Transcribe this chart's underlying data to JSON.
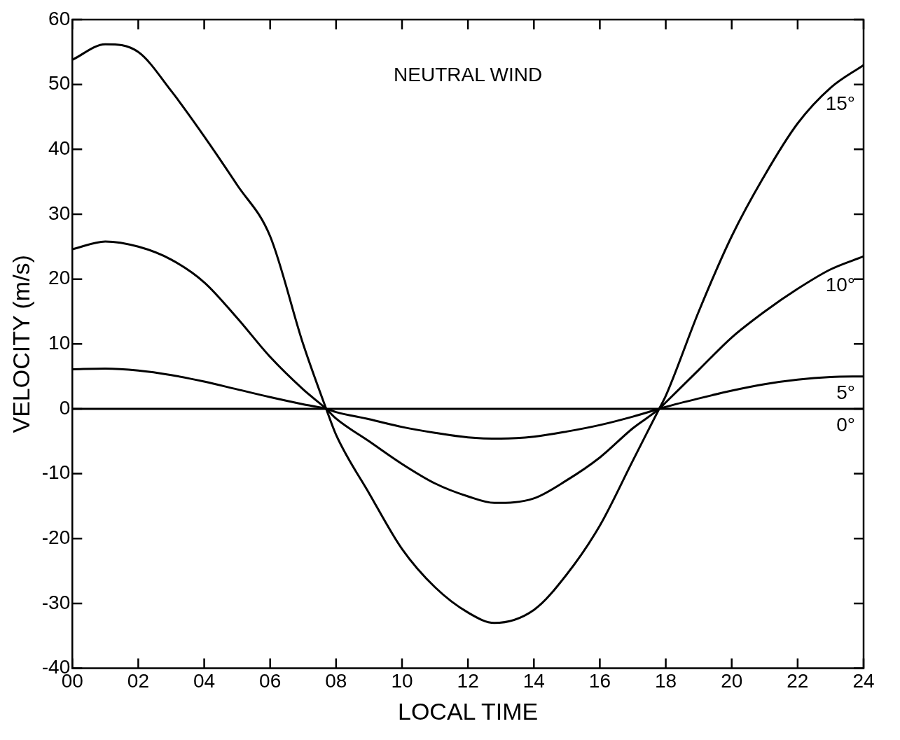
{
  "chart_data": {
    "type": "line",
    "title": "NEUTRAL WIND",
    "xlabel": "LOCAL TIME",
    "ylabel": "VELOCITY (m/s)",
    "xlim": [
      0,
      24
    ],
    "xticks": [
      {
        "value": 0,
        "label": "00"
      },
      {
        "value": 2,
        "label": "02"
      },
      {
        "value": 4,
        "label": "04"
      },
      {
        "value": 6,
        "label": "06"
      },
      {
        "value": 8,
        "label": "08"
      },
      10,
      12,
      14,
      16,
      18,
      20,
      22,
      24
    ],
    "ylim": [
      -40,
      60
    ],
    "yticks": [
      -40,
      -30,
      -20,
      -10,
      0,
      10,
      20,
      30,
      40,
      50,
      60
    ],
    "grid": false,
    "legend": "right",
    "marker": "none",
    "line_style": "solid",
    "series": [
      {
        "name": "15°",
        "color": "#000000",
        "x": [
          0,
          1,
          2,
          3,
          4,
          5,
          6,
          7,
          7.7,
          8,
          9,
          10,
          11,
          12,
          12.8,
          14,
          15,
          16,
          17,
          17.8,
          18,
          19,
          20,
          21,
          22,
          23,
          24
        ],
        "values": [
          53.8,
          56.2,
          55,
          49,
          42,
          34.5,
          26.6,
          10,
          0,
          -4,
          -13,
          -21.6,
          -27.5,
          -31.4,
          -33,
          -31,
          -25.5,
          -18,
          -8,
          0,
          2,
          15,
          26.6,
          36,
          44,
          49.5,
          53
        ]
      },
      {
        "name": "10°",
        "color": "#000000",
        "x": [
          0,
          1,
          2,
          3,
          4,
          5,
          6,
          7,
          7.7,
          8,
          9,
          10,
          11,
          12,
          12.8,
          14,
          15,
          16,
          17,
          17.8,
          18,
          19,
          20,
          21,
          22,
          23,
          24
        ],
        "values": [
          24.6,
          25.8,
          25,
          23,
          19.5,
          14,
          8,
          3,
          0,
          -1.5,
          -5,
          -8.5,
          -11.5,
          -13.5,
          -14.5,
          -13.8,
          -11,
          -7.5,
          -3,
          0,
          1,
          6,
          11,
          15,
          18.5,
          21.5,
          23.5
        ]
      },
      {
        "name": "5°",
        "color": "#000000",
        "x": [
          0,
          1,
          2,
          3,
          4,
          5,
          6,
          7,
          7.7,
          8,
          9,
          10,
          11,
          12,
          13,
          14,
          15,
          16,
          17,
          17.8,
          18,
          19,
          20,
          21,
          22,
          23,
          24
        ],
        "values": [
          6.1,
          6.2,
          5.9,
          5.2,
          4.2,
          3,
          1.8,
          0.7,
          0,
          -0.5,
          -1.6,
          -2.8,
          -3.7,
          -4.4,
          -4.6,
          -4.3,
          -3.5,
          -2.5,
          -1.2,
          0,
          0.3,
          1.6,
          2.8,
          3.8,
          4.5,
          4.9,
          5
        ]
      },
      {
        "name": "0°",
        "color": "#000000",
        "x": [
          0,
          24
        ],
        "values": [
          0,
          0
        ]
      }
    ]
  }
}
